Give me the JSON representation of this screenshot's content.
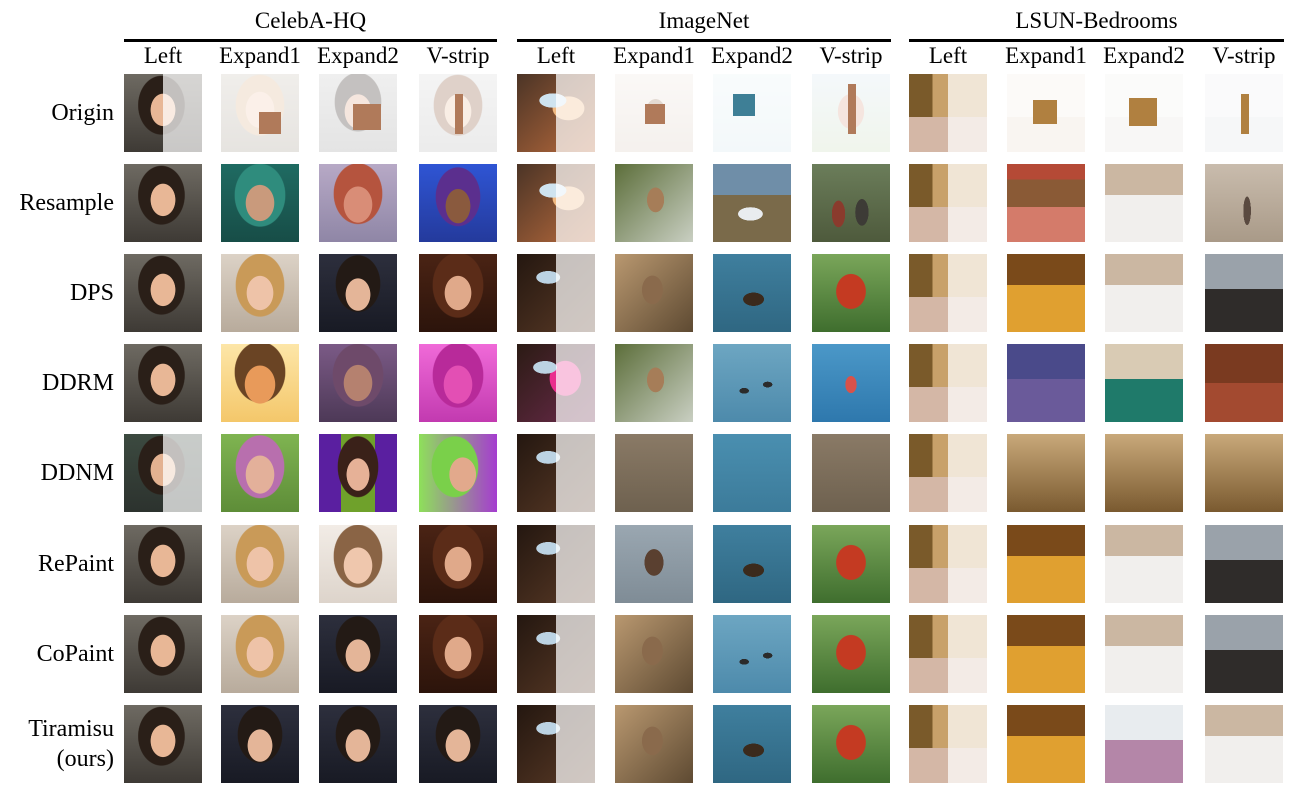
{
  "datasets": [
    "CelebA-HQ",
    "ImageNet",
    "LSUN-Bedrooms"
  ],
  "mask_types": [
    "Left",
    "Expand1",
    "Expand2",
    "V-strip"
  ],
  "methods": [
    "Origin",
    "Resample",
    "DPS",
    "DDRM",
    "DDNM",
    "RePaint",
    "CoPaint",
    "Tiramisu\n(ours)"
  ],
  "tiles": [
    [
      "face-split",
      "face-masked-expand1",
      "face-masked-expand2",
      "face-masked-vstrip",
      "bird-split",
      "bird-masked-expand1",
      "water-masked-expand2",
      "rooster-masked-vstrip",
      "bedroom-split",
      "bedroom-masked-expand1",
      "bedroom-masked-expand2",
      "bedroom-masked-vstrip"
    ],
    [
      "face",
      "face-green",
      "face-pink",
      "face-purple",
      "bird-split",
      "bird-branch",
      "duck-shore",
      "crowd-field",
      "bedroom-split",
      "bedroom-red",
      "bedroom-white",
      "room-beige"
    ],
    [
      "face",
      "face-blonde",
      "face-dark",
      "face-brunette",
      "bird-split-dark",
      "bird-wood",
      "water-duck",
      "rooster",
      "bedroom-split",
      "bedroom-gold",
      "bedroom-white",
      "bedroom-dark"
    ],
    [
      "face",
      "face-yellow",
      "face-noisy",
      "face-magenta",
      "bird-split-pink",
      "bird-branch",
      "water-birds",
      "sky-blue",
      "bedroom-split",
      "bedroom-blue",
      "bedroom-teal",
      "bedroom-wood"
    ],
    [
      "face-split-dark",
      "face-green-bg",
      "face-purple-bg",
      "face-lime-bg",
      "bird-split-dark",
      "brown-flat",
      "blue-flat",
      "brown-flat",
      "bedroom-split",
      "bedroom-flat",
      "bedroom-flat",
      "bedroom-flat"
    ],
    [
      "face",
      "face-blonde",
      "face-pale",
      "face-brunette",
      "bird-split-dark",
      "bird-gray",
      "water-duck",
      "rooster",
      "bedroom-split",
      "bedroom-gold",
      "bedroom-white",
      "bedroom-dark"
    ],
    [
      "face",
      "face-blonde",
      "face-dark",
      "face-brunette",
      "bird-split-dark",
      "bird-wood",
      "water-birds",
      "rooster",
      "bedroom-split",
      "bedroom-gold",
      "bedroom-white",
      "bedroom-dark"
    ],
    [
      "face",
      "face-dark",
      "face-dark",
      "face-dark",
      "bird-split-dark",
      "bird-wood",
      "water-duck",
      "rooster",
      "bedroom-split",
      "bedroom-gold",
      "bedroom-pink",
      "bedroom-white"
    ]
  ]
}
